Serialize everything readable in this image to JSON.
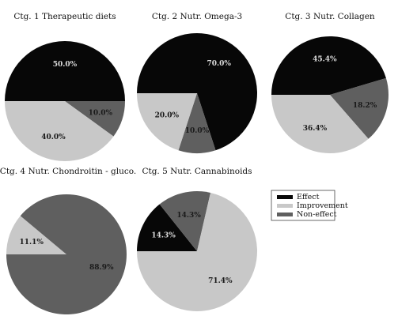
{
  "colors": {
    "effect": "#070707",
    "improvement": "#c8c8c8",
    "non_effect": "#5f5f5f",
    "background": "#ffffff",
    "label_dark": "#1a1a1a",
    "label_light": "#dcdcdc"
  },
  "legend": {
    "placement": "right of lower row",
    "items": [
      {
        "name": "Effect",
        "color_key": "effect"
      },
      {
        "name": "Improvement",
        "color_key": "improvement"
      },
      {
        "name": "Non-effect",
        "color_key": "non_effect"
      }
    ]
  },
  "chart_data": [
    {
      "type": "pie",
      "title": "Ctg. 1 Therapeutic diets",
      "slices": [
        {
          "name": "Effect",
          "value": 50.0,
          "label": "50.0%"
        },
        {
          "name": "Non-effect",
          "value": 10.0,
          "label": "10.0%"
        },
        {
          "name": "Improvement",
          "value": 40.0,
          "label": "40.0%"
        }
      ]
    },
    {
      "type": "pie",
      "title": "Ctg. 2 Nutr. Omega-3",
      "slices": [
        {
          "name": "Effect",
          "value": 70.0,
          "label": "70.0%"
        },
        {
          "name": "Non-effect",
          "value": 10.0,
          "label": "10.0%"
        },
        {
          "name": "Improvement",
          "value": 20.0,
          "label": "20.0%"
        }
      ]
    },
    {
      "type": "pie",
      "title": "Ctg. 3 Nutr. Collagen",
      "slices": [
        {
          "name": "Effect",
          "value": 45.4,
          "label": "45.4%"
        },
        {
          "name": "Non-effect",
          "value": 18.2,
          "label": "18.2%"
        },
        {
          "name": "Improvement",
          "value": 36.4,
          "label": "36.4%"
        }
      ]
    },
    {
      "type": "pie",
      "title": "Ctg. 4 Nutr. Chondroitin - gluco.",
      "slices": [
        {
          "name": "Improvement",
          "value": 11.1,
          "label": "11.1%"
        },
        {
          "name": "Non-effect",
          "value": 88.9,
          "label": "88.9%"
        }
      ]
    },
    {
      "type": "pie",
      "title": "Ctg. 5 Nutr. Cannabinoids",
      "slices": [
        {
          "name": "Effect",
          "value": 14.3,
          "label": "14.3%"
        },
        {
          "name": "Non-effect",
          "value": 14.3,
          "label": "14.3%"
        },
        {
          "name": "Improvement",
          "value": 71.4,
          "label": "71.4%"
        }
      ]
    }
  ]
}
